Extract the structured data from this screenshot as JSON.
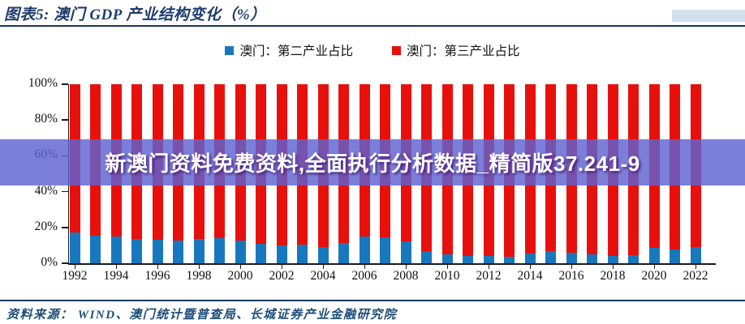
{
  "header": {
    "title": "图表5:  澳门 GDP 产业结构变化（%）"
  },
  "legend": {
    "items": [
      {
        "label": "澳门：第二产业占比",
        "color": "#1878be"
      },
      {
        "label": "澳门：第三产业占比",
        "color": "#e8100c"
      }
    ]
  },
  "watermark": {
    "text": "新澳门资料免费资料,全面执行分析数据_精简版37.241-9",
    "band_color": "#5e63d1"
  },
  "footer": {
    "source": "资料来源：  WIND、澳门统计暨普查局、长城证券产业金融研究院"
  },
  "chart_data": {
    "type": "bar",
    "stacked": true,
    "stack_total": 100,
    "title": "澳门 GDP 产业结构变化（%）",
    "x": [
      1992,
      1993,
      1994,
      1995,
      1996,
      1997,
      1998,
      1999,
      2000,
      2001,
      2002,
      2003,
      2004,
      2005,
      2006,
      2007,
      2008,
      2009,
      2010,
      2011,
      2012,
      2013,
      2014,
      2015,
      2016,
      2017,
      2018,
      2019,
      2020,
      2021,
      2022
    ],
    "series": [
      {
        "name": "澳门：第二产业占比",
        "color": "#1878be",
        "values": [
          17,
          15.5,
          15,
          13.5,
          13,
          12.5,
          13.5,
          14,
          12.5,
          11,
          10,
          10.5,
          9,
          11.5,
          15,
          14.5,
          12,
          7,
          5,
          4,
          4,
          3.5,
          5.5,
          7,
          6,
          5,
          4,
          4.5,
          8.5,
          7.5,
          9
        ]
      },
      {
        "name": "澳门：第三产业占比",
        "color": "#e8100c",
        "values": [
          83,
          84.5,
          85,
          86.5,
          87,
          87.5,
          86.5,
          86,
          87.5,
          89,
          90,
          89.5,
          91,
          88.5,
          85,
          85.5,
          88,
          93,
          95,
          96,
          96,
          96.5,
          94.5,
          93,
          94,
          95,
          96,
          95.5,
          91.5,
          92.5,
          91
        ]
      }
    ],
    "ylim": [
      0,
      100
    ],
    "ytick_values": [
      0,
      20,
      40,
      60,
      80,
      100
    ],
    "ytick_labels": [
      "0%",
      "20%",
      "40%",
      "60%",
      "80%",
      "100%"
    ],
    "xtick_labels": [
      "1992",
      "1994",
      "1996",
      "1998",
      "2000",
      "2002",
      "2004",
      "2006",
      "2008",
      "2010",
      "2012",
      "2014",
      "2016",
      "2018",
      "2020",
      "2022"
    ],
    "grid": false,
    "legend_position": "top-center"
  }
}
